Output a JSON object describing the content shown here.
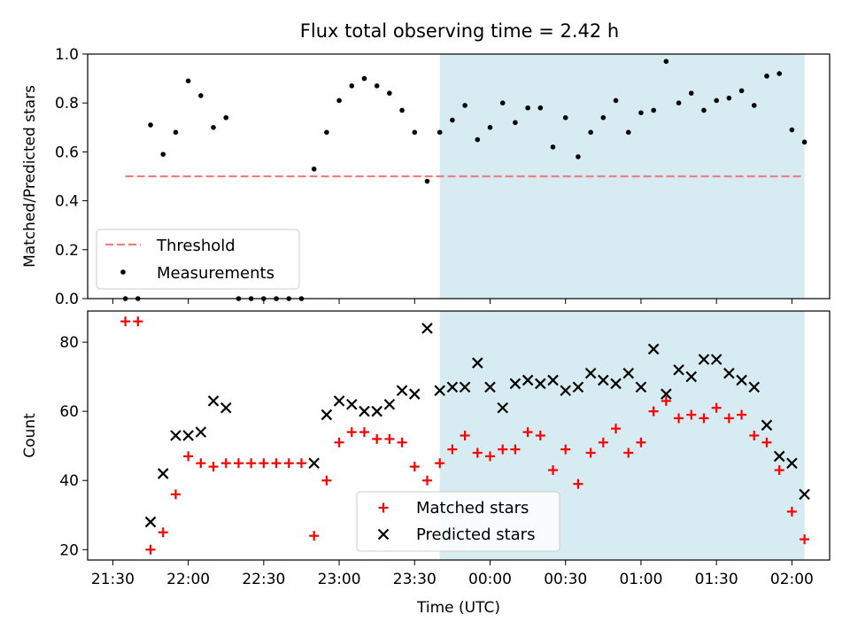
{
  "title": "Flux total observing time = 2.42 h",
  "colors": {
    "shade": "#add8e6",
    "threshold": "#f08080",
    "measurement": "#000000",
    "matched": "#ff0000",
    "predicted": "#000000"
  },
  "chart_data": [
    {
      "type": "scatter",
      "ylabel": "Matched/Predicted stars",
      "xlabel": "",
      "ylim": [
        0,
        1.0
      ],
      "yticks": [
        "0.0",
        "0.2",
        "0.4",
        "0.6",
        "0.8",
        "1.0"
      ],
      "shaded_region": [
        "23:40",
        "02:05"
      ],
      "legend_position": "lower-left",
      "threshold": {
        "name": "Threshold",
        "value": 0.5,
        "x_range": [
          "21:35",
          "02:05"
        ]
      },
      "series": [
        {
          "name": "Measurements",
          "points": [
            [
              "21:35",
              0.0
            ],
            [
              "21:40",
              0.0
            ],
            [
              "21:45",
              0.71
            ],
            [
              "21:50",
              0.59
            ],
            [
              "21:55",
              0.68
            ],
            [
              "22:00",
              0.89
            ],
            [
              "22:05",
              0.83
            ],
            [
              "22:10",
              0.7
            ],
            [
              "22:15",
              0.74
            ],
            [
              "22:20",
              0.0
            ],
            [
              "22:25",
              0.0
            ],
            [
              "22:30",
              0.0
            ],
            [
              "22:35",
              0.0
            ],
            [
              "22:40",
              0.0
            ],
            [
              "22:45",
              0.0
            ],
            [
              "22:50",
              0.53
            ],
            [
              "22:55",
              0.68
            ],
            [
              "23:00",
              0.81
            ],
            [
              "23:05",
              0.87
            ],
            [
              "23:10",
              0.9
            ],
            [
              "23:15",
              0.87
            ],
            [
              "23:20",
              0.84
            ],
            [
              "23:25",
              0.77
            ],
            [
              "23:30",
              0.68
            ],
            [
              "23:35",
              0.48
            ],
            [
              "23:40",
              0.68
            ],
            [
              "23:45",
              0.73
            ],
            [
              "23:50",
              0.79
            ],
            [
              "23:55",
              0.65
            ],
            [
              "00:00",
              0.7
            ],
            [
              "00:05",
              0.8
            ],
            [
              "00:10",
              0.72
            ],
            [
              "00:15",
              0.78
            ],
            [
              "00:20",
              0.78
            ],
            [
              "00:25",
              0.62
            ],
            [
              "00:30",
              0.74
            ],
            [
              "00:35",
              0.58
            ],
            [
              "00:40",
              0.68
            ],
            [
              "00:45",
              0.74
            ],
            [
              "00:50",
              0.81
            ],
            [
              "00:55",
              0.68
            ],
            [
              "01:00",
              0.76
            ],
            [
              "01:05",
              0.77
            ],
            [
              "01:10",
              0.97
            ],
            [
              "01:15",
              0.8
            ],
            [
              "01:20",
              0.84
            ],
            [
              "01:25",
              0.77
            ],
            [
              "01:30",
              0.81
            ],
            [
              "01:35",
              0.82
            ],
            [
              "01:40",
              0.85
            ],
            [
              "01:45",
              0.79
            ],
            [
              "01:50",
              0.91
            ],
            [
              "01:55",
              0.92
            ],
            [
              "02:00",
              0.69
            ],
            [
              "02:05",
              0.64
            ]
          ]
        }
      ]
    },
    {
      "type": "scatter",
      "ylabel": "Count",
      "xlabel": "Time (UTC)",
      "ylim": [
        17,
        89
      ],
      "yticks": [
        "20",
        "40",
        "60",
        "80"
      ],
      "xticks": [
        "21:30",
        "22:00",
        "22:30",
        "23:00",
        "23:30",
        "00:00",
        "00:30",
        "01:00",
        "01:30",
        "02:00"
      ],
      "shaded_region": [
        "23:40",
        "02:05"
      ],
      "legend_position": "lower-center",
      "series": [
        {
          "name": "Matched stars",
          "points": [
            [
              "21:35",
              86
            ],
            [
              "21:40",
              86
            ],
            [
              "21:45",
              20
            ],
            [
              "21:50",
              25
            ],
            [
              "21:55",
              36
            ],
            [
              "22:00",
              47
            ],
            [
              "22:05",
              45
            ],
            [
              "22:10",
              44
            ],
            [
              "22:15",
              45
            ],
            [
              "22:20",
              45
            ],
            [
              "22:25",
              45
            ],
            [
              "22:30",
              45
            ],
            [
              "22:35",
              45
            ],
            [
              "22:40",
              45
            ],
            [
              "22:45",
              45
            ],
            [
              "22:50",
              24
            ],
            [
              "22:55",
              40
            ],
            [
              "23:00",
              51
            ],
            [
              "23:05",
              54
            ],
            [
              "23:10",
              54
            ],
            [
              "23:15",
              52
            ],
            [
              "23:20",
              52
            ],
            [
              "23:25",
              51
            ],
            [
              "23:30",
              44
            ],
            [
              "23:35",
              40
            ],
            [
              "23:40",
              45
            ],
            [
              "23:45",
              49
            ],
            [
              "23:50",
              53
            ],
            [
              "23:55",
              48
            ],
            [
              "00:00",
              47
            ],
            [
              "00:05",
              49
            ],
            [
              "00:10",
              49
            ],
            [
              "00:15",
              54
            ],
            [
              "00:20",
              53
            ],
            [
              "00:25",
              43
            ],
            [
              "00:30",
              49
            ],
            [
              "00:35",
              39
            ],
            [
              "00:40",
              48
            ],
            [
              "00:45",
              51
            ],
            [
              "00:50",
              55
            ],
            [
              "00:55",
              48
            ],
            [
              "01:00",
              51
            ],
            [
              "01:05",
              60
            ],
            [
              "01:10",
              63
            ],
            [
              "01:15",
              58
            ],
            [
              "01:20",
              59
            ],
            [
              "01:25",
              58
            ],
            [
              "01:30",
              61
            ],
            [
              "01:35",
              58
            ],
            [
              "01:40",
              59
            ],
            [
              "01:45",
              53
            ],
            [
              "01:50",
              51
            ],
            [
              "01:55",
              43
            ],
            [
              "02:00",
              31
            ],
            [
              "02:05",
              23
            ]
          ]
        },
        {
          "name": "Predicted stars",
          "points": [
            [
              "21:45",
              28
            ],
            [
              "21:50",
              42
            ],
            [
              "21:55",
              53
            ],
            [
              "22:00",
              53
            ],
            [
              "22:05",
              54
            ],
            [
              "22:10",
              63
            ],
            [
              "22:15",
              61
            ],
            [
              "22:50",
              45
            ],
            [
              "22:55",
              59
            ],
            [
              "23:00",
              63
            ],
            [
              "23:05",
              62
            ],
            [
              "23:10",
              60
            ],
            [
              "23:15",
              60
            ],
            [
              "23:20",
              62
            ],
            [
              "23:25",
              66
            ],
            [
              "23:30",
              65
            ],
            [
              "23:35",
              84
            ],
            [
              "23:40",
              66
            ],
            [
              "23:45",
              67
            ],
            [
              "23:50",
              67
            ],
            [
              "23:55",
              74
            ],
            [
              "00:00",
              67
            ],
            [
              "00:05",
              61
            ],
            [
              "00:10",
              68
            ],
            [
              "00:15",
              69
            ],
            [
              "00:20",
              68
            ],
            [
              "00:25",
              69
            ],
            [
              "00:30",
              66
            ],
            [
              "00:35",
              67
            ],
            [
              "00:40",
              71
            ],
            [
              "00:45",
              69
            ],
            [
              "00:50",
              68
            ],
            [
              "00:55",
              71
            ],
            [
              "01:00",
              67
            ],
            [
              "01:05",
              78
            ],
            [
              "01:10",
              65
            ],
            [
              "01:15",
              72
            ],
            [
              "01:20",
              70
            ],
            [
              "01:25",
              75
            ],
            [
              "01:30",
              75
            ],
            [
              "01:35",
              71
            ],
            [
              "01:40",
              69
            ],
            [
              "01:45",
              67
            ],
            [
              "01:50",
              56
            ],
            [
              "01:55",
              47
            ],
            [
              "02:00",
              45
            ],
            [
              "02:05",
              36
            ]
          ]
        }
      ]
    }
  ]
}
